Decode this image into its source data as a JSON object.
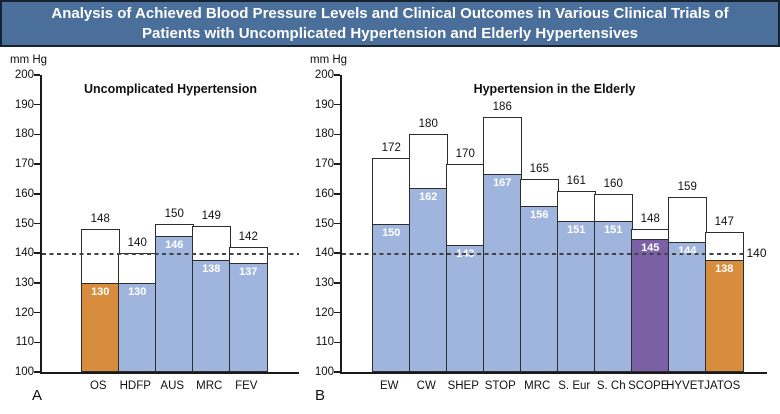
{
  "title": "Analysis of Achieved Blood Pressure Levels and Clinical Outcomes in Various Clinical Trials of Patients with Uncomplicated Hypertension and Elderly Hypertensives",
  "palette": {
    "blue": "#a0b5de",
    "orange": "#d78d3d",
    "purple": "#7c60a5",
    "title_bg": "#4a6f9b",
    "title_border": "#16222f",
    "axis": "#1a1a1a",
    "bar_border": "#2d2d2d",
    "reference_dash": "#444444"
  },
  "chart_data": [
    {
      "type": "bar",
      "panel_label": "A",
      "title": "Uncomplicated Hypertension",
      "ylabel": "mm Hg",
      "ylim": [
        100,
        200
      ],
      "ytick_step": 10,
      "reference_line": 140,
      "categories": [
        "OS",
        "HDFP",
        "AUS",
        "MRC",
        "FEV"
      ],
      "series": [
        {
          "name": "bar-top-value",
          "values": [
            148,
            140,
            150,
            149,
            142
          ]
        },
        {
          "name": "filled-level-value",
          "values": [
            130,
            130,
            146,
            138,
            137
          ]
        }
      ],
      "fill_colors": [
        "orange",
        "blue",
        "blue",
        "blue",
        "blue"
      ],
      "grid": false,
      "legend": "none"
    },
    {
      "type": "bar",
      "panel_label": "B",
      "title": "Hypertension in the Elderly",
      "ylabel": "mm Hg",
      "ylim": [
        100,
        200
      ],
      "ytick_step": 10,
      "reference_line": 140,
      "reference_line_label": "140",
      "categories": [
        "EW",
        "CW",
        "SHEP",
        "STOP",
        "MRC",
        "S. Eur",
        "S. Ch",
        "SCOPE",
        "HYVET",
        "JATOS"
      ],
      "series": [
        {
          "name": "bar-top-value",
          "values": [
            172,
            180,
            170,
            186,
            165,
            161,
            160,
            148,
            159,
            147
          ]
        },
        {
          "name": "filled-level-value",
          "values": [
            150,
            162,
            143,
            167,
            156,
            151,
            151,
            145,
            144,
            138
          ]
        }
      ],
      "fill_colors": [
        "blue",
        "blue",
        "blue",
        "blue",
        "blue",
        "blue",
        "blue",
        "purple",
        "blue",
        "orange"
      ],
      "grid": false,
      "legend": "none"
    }
  ]
}
